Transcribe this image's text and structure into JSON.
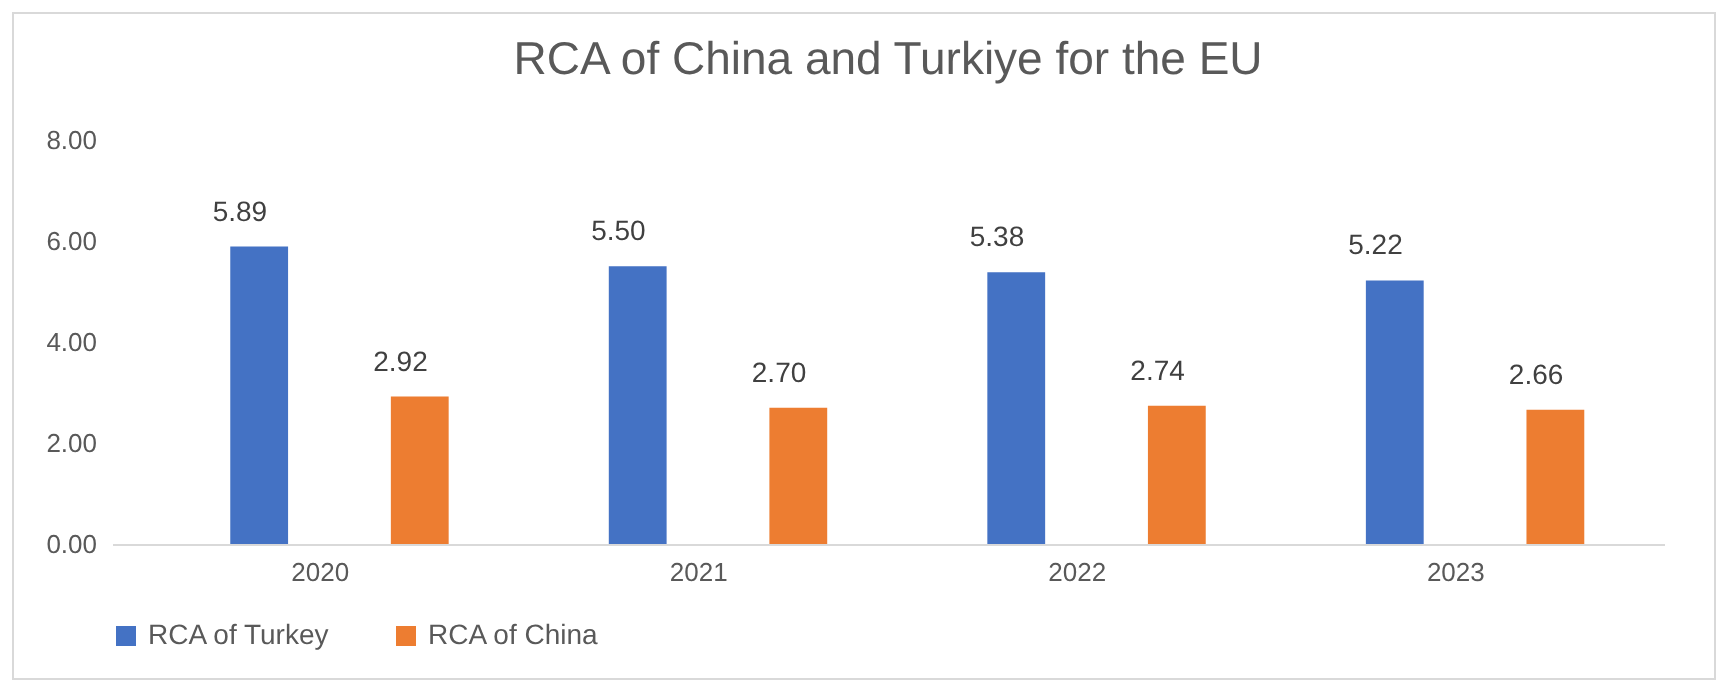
{
  "chart_data": {
    "type": "bar",
    "title": "RCA of China and Turkiye for the EU",
    "categories": [
      "2020",
      "2021",
      "2022",
      "2023"
    ],
    "series": [
      {
        "name": "RCA of Turkey",
        "color": "#4472c4",
        "values": [
          5.89,
          5.5,
          5.38,
          5.22
        ],
        "value_labels": [
          "5.89",
          "5.50",
          "5.38",
          "5.22"
        ]
      },
      {
        "name": "RCA of China",
        "color": "#ed7d31",
        "values": [
          2.92,
          2.7,
          2.74,
          2.66
        ],
        "value_labels": [
          "2.92",
          "2.70",
          "2.74",
          "2.66"
        ]
      }
    ],
    "ylim": [
      0,
      8
    ],
    "yticks": [
      {
        "value": 0,
        "label": "0.00"
      },
      {
        "value": 2,
        "label": "2.00"
      },
      {
        "value": 4,
        "label": "4.00"
      },
      {
        "value": 6,
        "label": "6.00"
      },
      {
        "value": 8,
        "label": "8.00"
      }
    ],
    "legend": "bottom"
  }
}
